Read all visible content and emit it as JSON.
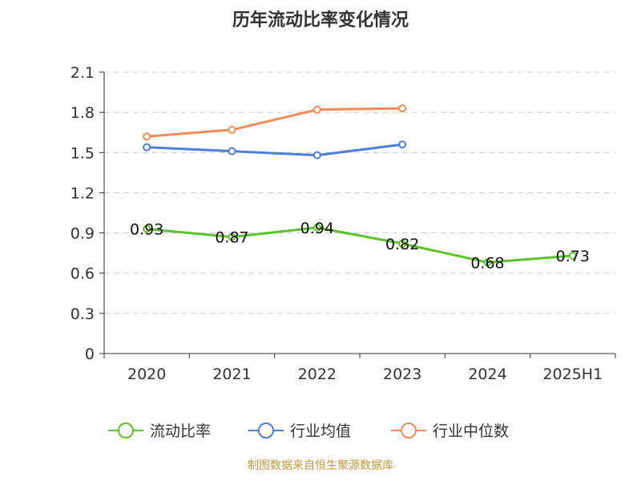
{
  "chart_data": {
    "type": "line",
    "title": "历年流动比率变化情况",
    "categories": [
      "2020",
      "2021",
      "2022",
      "2023",
      "2024",
      "2025H1"
    ],
    "ylim": [
      0,
      2.1
    ],
    "yticks": [
      "0",
      "0.3",
      "0.6",
      "0.9",
      "1.2",
      "1.5",
      "1.8",
      "2.1"
    ],
    "grid": true,
    "legend_position": "bottom",
    "series": [
      {
        "name": "流动比率",
        "color": "#5cc32b",
        "values": [
          0.93,
          0.87,
          0.94,
          0.82,
          0.68,
          0.73
        ],
        "labels": [
          "0.93",
          "0.87",
          "0.94",
          "0.82",
          "0.68",
          "0.73"
        ]
      },
      {
        "name": "行业均值",
        "color": "#4c7fdc",
        "values": [
          1.54,
          1.51,
          1.48,
          1.56,
          null,
          null
        ]
      },
      {
        "name": "行业中位数",
        "color": "#f28c57",
        "values": [
          1.62,
          1.67,
          1.82,
          1.83,
          null,
          null
        ]
      }
    ],
    "source": "制图数据来自恒生聚源数据库"
  }
}
